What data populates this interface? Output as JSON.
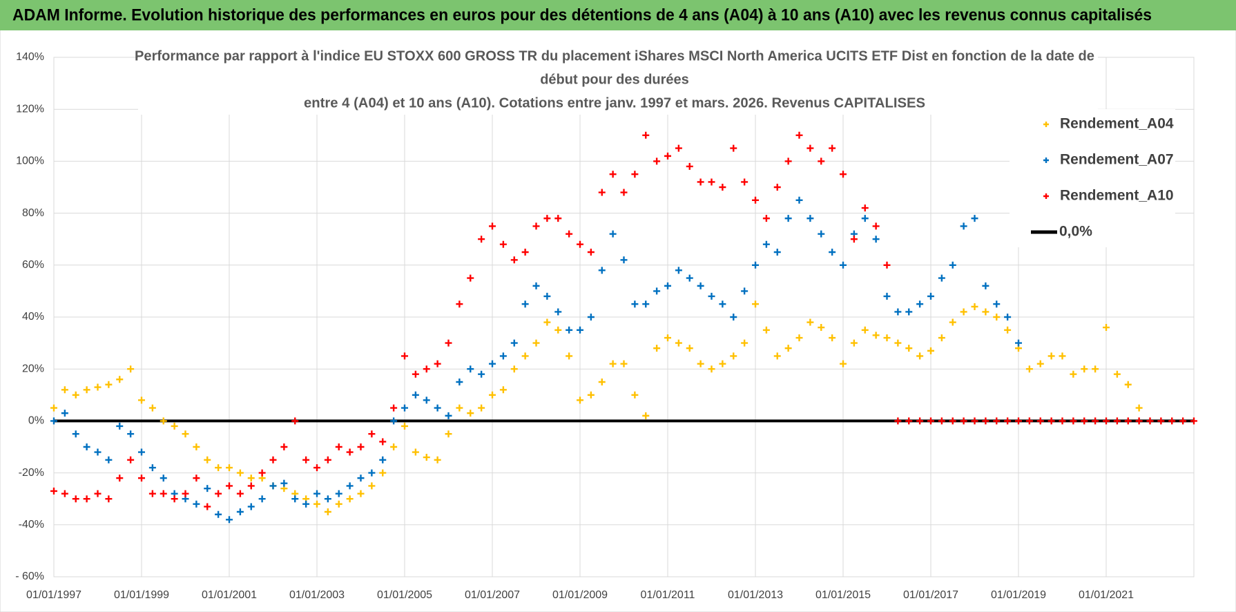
{
  "header": {
    "title": "ADAM Informe. Evolution historique des performances en euros pour des détentions de 4 ans (A04) à 10 ans (A10) avec les revenus connus capitalisés"
  },
  "chart_data": {
    "type": "scatter",
    "title": [
      "Performance par rapport à l'indice EU STOXX 600 GROSS TR  du placement iShares MSCI North America UCITS ETF Dist en fonction de la date de",
      "début pour des durées",
      "entre 4 (A04) et 10 ans (A10). Cotations entre janv. 1997 et mars. 2026. Revenus CAPITALISES"
    ],
    "x": [
      "01/01/1997",
      "01/04/1997",
      "01/07/1997",
      "01/10/1997",
      "01/01/1998",
      "01/04/1998",
      "01/07/1998",
      "01/10/1998",
      "01/01/1999",
      "01/04/1999",
      "01/07/1999",
      "01/10/1999",
      "01/01/2000",
      "01/04/2000",
      "01/07/2000",
      "01/10/2000",
      "01/01/2001",
      "01/04/2001",
      "01/07/2001",
      "01/10/2001",
      "01/01/2002",
      "01/04/2002",
      "01/07/2002",
      "01/10/2002",
      "01/01/2003",
      "01/04/2003",
      "01/07/2003",
      "01/10/2003",
      "01/01/2004",
      "01/04/2004",
      "01/07/2004",
      "01/10/2004",
      "01/01/2005",
      "01/04/2005",
      "01/07/2005",
      "01/10/2005",
      "01/01/2006",
      "01/04/2006",
      "01/07/2006",
      "01/10/2006",
      "01/01/2007",
      "01/04/2007",
      "01/07/2007",
      "01/10/2007",
      "01/01/2008",
      "01/04/2008",
      "01/07/2008",
      "01/10/2008",
      "01/01/2009",
      "01/04/2009",
      "01/07/2009",
      "01/10/2009",
      "01/01/2010",
      "01/04/2010",
      "01/07/2010",
      "01/10/2010",
      "01/01/2011",
      "01/04/2011",
      "01/07/2011",
      "01/10/2011",
      "01/01/2012",
      "01/04/2012",
      "01/07/2012",
      "01/10/2012",
      "01/01/2013",
      "01/04/2013",
      "01/07/2013",
      "01/10/2013",
      "01/01/2014",
      "01/04/2014",
      "01/07/2014",
      "01/10/2014",
      "01/01/2015",
      "01/04/2015",
      "01/07/2015",
      "01/10/2015",
      "01/01/2016",
      "01/04/2016",
      "01/07/2016",
      "01/10/2016",
      "01/01/2017",
      "01/04/2017",
      "01/07/2017",
      "01/10/2017",
      "01/01/2018",
      "01/04/2018",
      "01/07/2018",
      "01/10/2018",
      "01/01/2019",
      "01/04/2019",
      "01/07/2019",
      "01/10/2019",
      "01/01/2020",
      "01/04/2020",
      "01/07/2020",
      "01/10/2020",
      "01/01/2021",
      "01/04/2021",
      "01/07/2021",
      "01/10/2021",
      "01/01/2022",
      "01/04/2022",
      "01/07/2022",
      "01/10/2022",
      "01/01/2023"
    ],
    "series": [
      {
        "name": "Rendement_A04",
        "color": "#ffc000",
        "style": "marker",
        "values": [
          5,
          12,
          10,
          12,
          13,
          14,
          16,
          20,
          8,
          5,
          0,
          -2,
          -5,
          -10,
          -15,
          -18,
          -18,
          -20,
          -22,
          -22,
          -25,
          -26,
          -28,
          -30,
          -32,
          -35,
          -32,
          -30,
          -28,
          -25,
          -20,
          -10,
          -2,
          -12,
          -14,
          -15,
          -5,
          5,
          3,
          5,
          10,
          12,
          20,
          25,
          30,
          38,
          35,
          25,
          8,
          10,
          15,
          22,
          22,
          10,
          2,
          28,
          32,
          30,
          28,
          22,
          20,
          22,
          25,
          30,
          45,
          35,
          25,
          28,
          32,
          38,
          36,
          32,
          22,
          30,
          35,
          33,
          32,
          30,
          28,
          25,
          27,
          32,
          38,
          42,
          44,
          42,
          40,
          35,
          28,
          20,
          22,
          25,
          25,
          18,
          20,
          20,
          36,
          18,
          14,
          5,
          null,
          null,
          null,
          null,
          null
        ]
      },
      {
        "name": "Rendement_A07",
        "color": "#0070c0",
        "style": "marker",
        "values": [
          0,
          3,
          -5,
          -10,
          -12,
          -15,
          -2,
          -5,
          -12,
          -18,
          -22,
          -28,
          -30,
          -32,
          -26,
          -36,
          -38,
          -35,
          -33,
          -30,
          -25,
          -24,
          -30,
          -32,
          -28,
          -30,
          -28,
          -25,
          -22,
          -20,
          -15,
          0,
          5,
          10,
          8,
          5,
          2,
          15,
          20,
          18,
          22,
          25,
          30,
          45,
          52,
          48,
          42,
          35,
          35,
          40,
          58,
          72,
          62,
          45,
          45,
          50,
          52,
          58,
          55,
          52,
          48,
          45,
          40,
          50,
          60,
          68,
          65,
          78,
          85,
          78,
          72,
          65,
          60,
          72,
          78,
          70,
          48,
          42,
          42,
          45,
          48,
          55,
          60,
          75,
          78,
          52,
          45,
          40,
          30,
          null,
          null,
          null,
          null,
          null,
          null,
          null,
          null,
          null,
          null,
          null,
          null,
          null,
          null,
          null,
          null
        ]
      },
      {
        "name": "Rendement_A10",
        "color": "#ff0000",
        "style": "marker",
        "values": [
          -27,
          -28,
          -30,
          -30,
          -28,
          -30,
          -22,
          -15,
          -22,
          -28,
          -28,
          -30,
          -28,
          -22,
          -33,
          -28,
          -25,
          -28,
          -25,
          -20,
          -15,
          -10,
          0,
          -15,
          -18,
          -15,
          -10,
          -12,
          -10,
          -5,
          -8,
          5,
          25,
          18,
          20,
          22,
          30,
          45,
          55,
          70,
          75,
          68,
          62,
          65,
          75,
          78,
          78,
          72,
          68,
          65,
          88,
          95,
          88,
          95,
          110,
          100,
          102,
          105,
          98,
          92,
          92,
          90,
          105,
          92,
          85,
          78,
          90,
          100,
          110,
          105,
          100,
          105,
          95,
          70,
          82,
          75,
          60,
          0,
          0,
          0,
          0,
          0,
          0,
          0,
          0,
          0,
          0,
          0,
          0,
          0,
          0,
          0,
          0,
          0,
          0,
          0,
          0,
          0,
          0,
          0,
          0,
          0,
          0,
          0,
          0
        ]
      },
      {
        "name": "0,0%",
        "color": "#000000",
        "style": "line",
        "x": [
          "01/01/1997",
          "01/01/2023"
        ],
        "values": [
          0,
          0
        ]
      }
    ],
    "xlim": [
      "01/01/1997",
      "01/01/2023"
    ],
    "xticks": [
      "01/01/1997",
      "01/01/1999",
      "01/01/2001",
      "01/01/2003",
      "01/01/2005",
      "01/01/2007",
      "01/01/2009",
      "01/01/2011",
      "01/01/2013",
      "01/01/2015",
      "01/01/2017",
      "01/01/2019",
      "01/01/2021"
    ],
    "ylim": [
      -60,
      140
    ],
    "yticks": [
      {
        "value": -60,
        "label": "- 60%"
      },
      {
        "value": -40,
        "label": "-40%"
      },
      {
        "value": -20,
        "label": "-20%"
      },
      {
        "value": 0,
        "label": "0%"
      },
      {
        "value": 20,
        "label": "20%"
      },
      {
        "value": 40,
        "label": "40%"
      },
      {
        "value": 60,
        "label": "60%"
      },
      {
        "value": 80,
        "label": "80%"
      },
      {
        "value": 100,
        "label": "100%"
      },
      {
        "value": 120,
        "label": "120%"
      },
      {
        "value": 140,
        "label": "140%"
      }
    ],
    "grid": true,
    "legend": "upper right"
  }
}
